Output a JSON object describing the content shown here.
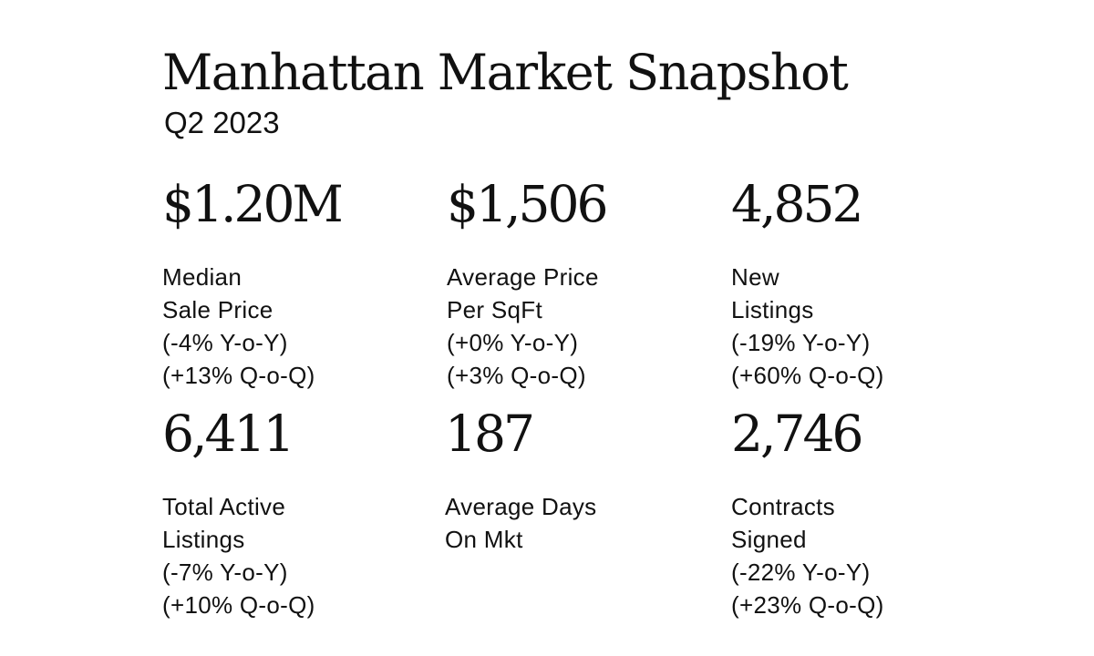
{
  "header": {
    "title": "Manhattan Market Snapshot",
    "subtitle": "Q2 2023"
  },
  "stats": [
    {
      "value": "$1.20M",
      "label_line1": "Median",
      "label_line2": "Sale Price",
      "yoy": "(-4% Y-o-Y)",
      "qoq": "(+13% Q-o-Q)"
    },
    {
      "value": "$1,506",
      "label_line1": "Average Price",
      "label_line2": "Per SqFt",
      "yoy": "(+0% Y-o-Y)",
      "qoq": "(+3% Q-o-Q)"
    },
    {
      "value": "4,852",
      "label_line1": "New",
      "label_line2": "Listings",
      "yoy": "(-19% Y-o-Y)",
      "qoq": "(+60% Q-o-Q)"
    },
    {
      "value": "6,411",
      "label_line1": "Total Active",
      "label_line2": "Listings",
      "yoy": "(-7% Y-o-Y)",
      "qoq": "(+10% Q-o-Q)"
    },
    {
      "value": "187",
      "label_line1": "Average Days",
      "label_line2": "On Mkt",
      "yoy": "",
      "qoq": ""
    },
    {
      "value": "2,746",
      "label_line1": "Contracts",
      "label_line2": "Signed",
      "yoy": "(-22% Y-o-Y)",
      "qoq": "(+23% Q-o-Q)"
    }
  ]
}
